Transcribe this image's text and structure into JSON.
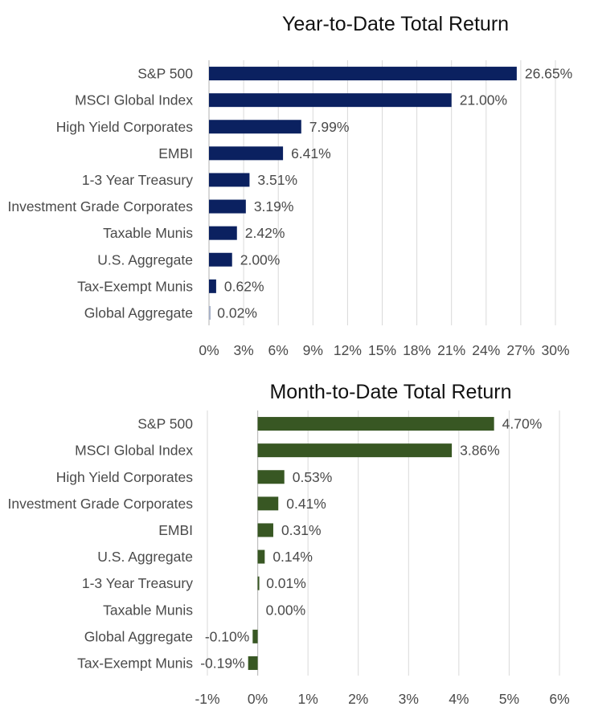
{
  "chart_data": [
    {
      "type": "bar",
      "orientation": "horizontal",
      "title": "Year-to-Date Total Return",
      "categories": [
        "S&P 500",
        "MSCI Global Index",
        "High Yield Corporates",
        "EMBI",
        "1-3 Year Treasury",
        "Investment Grade Corporates",
        "Taxable Munis",
        "U.S. Aggregate",
        "Tax-Exempt Munis",
        "Global Aggregate"
      ],
      "values": [
        26.65,
        21.0,
        7.99,
        6.41,
        3.51,
        3.19,
        2.42,
        2.0,
        0.62,
        0.02
      ],
      "value_labels": [
        "26.65%",
        "21.00%",
        "7.99%",
        "6.41%",
        "3.51%",
        "3.19%",
        "2.42%",
        "2.00%",
        "0.62%",
        "0.02%"
      ],
      "xlim": [
        0,
        30
      ],
      "xticks": [
        0,
        3,
        6,
        9,
        12,
        15,
        18,
        21,
        24,
        27,
        30
      ],
      "xtick_labels": [
        "0%",
        "3%",
        "6%",
        "9%",
        "12%",
        "15%",
        "18%",
        "21%",
        "24%",
        "27%",
        "30%"
      ],
      "grid": true,
      "color": "#0b2160",
      "faded_last_bar_color": "#a9b3c9"
    },
    {
      "type": "bar",
      "orientation": "horizontal",
      "title": "Month-to-Date Total Return",
      "categories": [
        "S&P 500",
        "MSCI Global Index",
        "High Yield Corporates",
        "Investment Grade Corporates",
        "EMBI",
        "U.S. Aggregate",
        "1-3 Year Treasury",
        "Taxable Munis",
        "Global Aggregate",
        "Tax-Exempt Munis"
      ],
      "values": [
        4.7,
        3.86,
        0.53,
        0.41,
        0.31,
        0.14,
        0.01,
        0.0,
        -0.1,
        -0.19
      ],
      "value_labels": [
        "4.70%",
        "3.86%",
        "0.53%",
        "0.41%",
        "0.31%",
        "0.14%",
        "0.01%",
        "0.00%",
        "-0.10%",
        "-0.19%"
      ],
      "xlim": [
        -1,
        6
      ],
      "xticks": [
        -1,
        0,
        1,
        2,
        3,
        4,
        5,
        6
      ],
      "xtick_labels": [
        "-1%",
        "0%",
        "1%",
        "2%",
        "3%",
        "4%",
        "5%",
        "6%"
      ],
      "grid": true,
      "color": "#385723"
    }
  ]
}
